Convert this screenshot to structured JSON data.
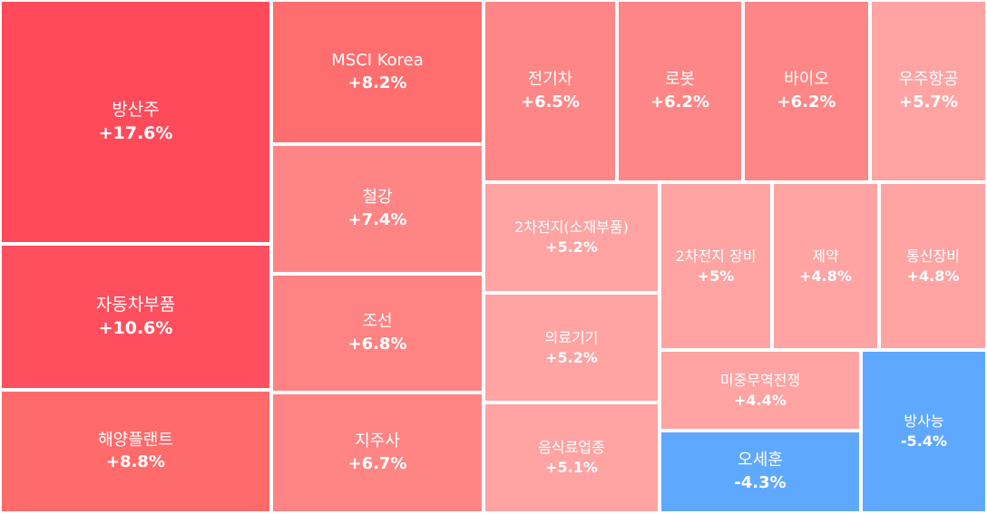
{
  "chart_data": {
    "type": "treemap",
    "items": [
      {
        "name": "방산주",
        "value": 17.6,
        "label": "+17.6%",
        "color": "#ff4a5a"
      },
      {
        "name": "자동차부품",
        "value": 10.6,
        "label": "+10.6%",
        "color": "#ff4f5e"
      },
      {
        "name": "해양플랜트",
        "value": 8.8,
        "label": "+8.8%",
        "color": "#ff6a6a"
      },
      {
        "name": "MSCI Korea",
        "value": 8.2,
        "label": "+8.2%",
        "color": "#ff6e6e"
      },
      {
        "name": "철강",
        "value": 7.4,
        "label": "+7.4%",
        "color": "#ff8585"
      },
      {
        "name": "조선",
        "value": 6.8,
        "label": "+6.8%",
        "color": "#ff8383"
      },
      {
        "name": "지주사",
        "value": 6.7,
        "label": "+6.7%",
        "color": "#ff8484"
      },
      {
        "name": "전기차",
        "value": 6.5,
        "label": "+6.5%",
        "color": "#ff8686"
      },
      {
        "name": "로봇",
        "value": 6.2,
        "label": "+6.2%",
        "color": "#ff8686"
      },
      {
        "name": "바이오",
        "value": 6.2,
        "label": "+6.2%",
        "color": "#ff8686"
      },
      {
        "name": "우주항공",
        "value": 5.7,
        "label": "+5.7%",
        "color": "#ffa3a3"
      },
      {
        "name": "2차전지(소재부품)",
        "value": 5.2,
        "label": "+5.2%",
        "color": "#ffa3a3"
      },
      {
        "name": "의료기기",
        "value": 5.2,
        "label": "+5.2%",
        "color": "#ffa3a3"
      },
      {
        "name": "음식료업종",
        "value": 5.1,
        "label": "+5.1%",
        "color": "#ffa3a3"
      },
      {
        "name": "2차전지 장비",
        "value": 5.0,
        "label": "+5%",
        "color": "#ffa3a3"
      },
      {
        "name": "제약",
        "value": 4.8,
        "label": "+4.8%",
        "color": "#ffa3a3"
      },
      {
        "name": "통신장비",
        "value": 4.8,
        "label": "+4.8%",
        "color": "#ffa3a3"
      },
      {
        "name": "미중무역전쟁",
        "value": 4.4,
        "label": "+4.4%",
        "color": "#ffa3a3"
      },
      {
        "name": "오세훈",
        "value": -4.3,
        "label": "-4.3%",
        "color": "#5fa8ff"
      },
      {
        "name": "방사능",
        "value": -5.4,
        "label": "-5.4%",
        "color": "#5fa8ff"
      }
    ]
  }
}
